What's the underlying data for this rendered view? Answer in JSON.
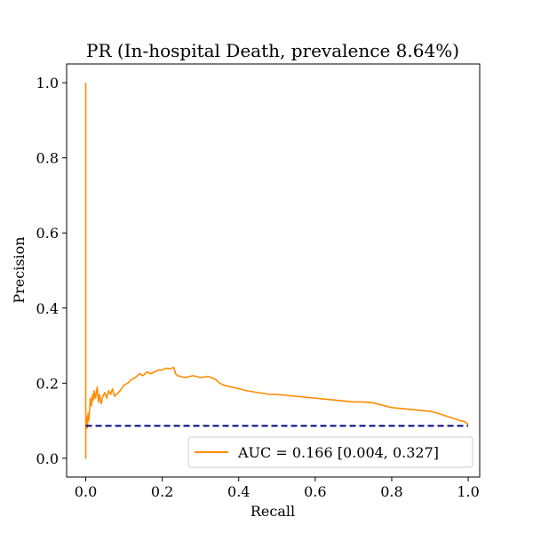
{
  "chart_data": {
    "type": "line",
    "title": "PR (In-hospital Death, prevalence 8.64%)",
    "xlabel": "Recall",
    "ylabel": "Precision",
    "xlim": [
      -0.05,
      1.03
    ],
    "ylim": [
      -0.05,
      1.05
    ],
    "xticks": [
      0.0,
      0.2,
      0.4,
      0.6,
      0.8,
      1.0
    ],
    "xtick_labels": [
      "0.0",
      "0.2",
      "0.4",
      "0.6",
      "0.8",
      "1.0"
    ],
    "yticks": [
      0.0,
      0.2,
      0.4,
      0.6,
      0.8,
      1.0
    ],
    "ytick_labels": [
      "0.0",
      "0.2",
      "0.4",
      "0.6",
      "0.8",
      "1.0"
    ],
    "grid": false,
    "legend_position": "lower-right",
    "series": [
      {
        "name": "AUC = 0.166 [0.004, 0.327]",
        "color": "#ff8c00",
        "style": "solid",
        "x": [
          0.0,
          0.0,
          0.0,
          0.0,
          0.002,
          0.004,
          0.006,
          0.008,
          0.01,
          0.012,
          0.015,
          0.018,
          0.02,
          0.022,
          0.025,
          0.028,
          0.03,
          0.033,
          0.036,
          0.04,
          0.045,
          0.05,
          0.055,
          0.06,
          0.065,
          0.07,
          0.075,
          0.08,
          0.085,
          0.09,
          0.1,
          0.11,
          0.12,
          0.13,
          0.14,
          0.15,
          0.16,
          0.17,
          0.18,
          0.19,
          0.2,
          0.21,
          0.22,
          0.23,
          0.235,
          0.24,
          0.26,
          0.28,
          0.3,
          0.32,
          0.34,
          0.35,
          0.36,
          0.38,
          0.4,
          0.42,
          0.45,
          0.48,
          0.5,
          0.55,
          0.6,
          0.65,
          0.7,
          0.72,
          0.75,
          0.78,
          0.8,
          0.85,
          0.9,
          0.92,
          0.95,
          0.98,
          0.99,
          1.0
        ],
        "y": [
          1.0,
          0.15,
          0.0,
          0.09,
          0.11,
          0.08,
          0.12,
          0.1,
          0.13,
          0.16,
          0.14,
          0.17,
          0.155,
          0.18,
          0.16,
          0.175,
          0.19,
          0.15,
          0.17,
          0.145,
          0.165,
          0.175,
          0.16,
          0.18,
          0.17,
          0.185,
          0.165,
          0.17,
          0.175,
          0.18,
          0.195,
          0.2,
          0.21,
          0.215,
          0.225,
          0.22,
          0.23,
          0.225,
          0.23,
          0.235,
          0.235,
          0.24,
          0.238,
          0.242,
          0.225,
          0.22,
          0.215,
          0.22,
          0.215,
          0.218,
          0.21,
          0.2,
          0.195,
          0.19,
          0.185,
          0.18,
          0.175,
          0.17,
          0.17,
          0.165,
          0.16,
          0.155,
          0.15,
          0.15,
          0.148,
          0.14,
          0.135,
          0.13,
          0.125,
          0.12,
          0.11,
          0.1,
          0.098,
          0.09
        ]
      },
      {
        "name": "",
        "color": "#000080",
        "style": "dashed",
        "x": [
          0.0,
          1.0
        ],
        "y": [
          0.0864,
          0.0864
        ]
      }
    ]
  }
}
